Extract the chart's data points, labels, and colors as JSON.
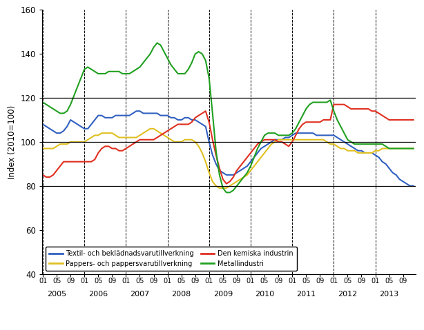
{
  "title": "",
  "ylabel": "Index (2010=100)",
  "ylim": [
    40,
    160
  ],
  "yticks": [
    40,
    60,
    80,
    100,
    120,
    140,
    160
  ],
  "hlines": [
    80,
    100,
    120
  ],
  "background_color": "#ffffff",
  "legend_labels": [
    "Textil- och beklädnadsvarutillverkning",
    "Pappers- och pappersvarutillverkning",
    "Den kemiska industrin",
    "Metallindustri"
  ],
  "colors": {
    "textil": "#3060c0",
    "pappers": "#e0c020",
    "kemiska": "#e03020",
    "metall": "#20a020"
  },
  "start_year": 2005,
  "start_month": 1,
  "textil": [
    108,
    107,
    106,
    105,
    104,
    104,
    105,
    107,
    110,
    109,
    108,
    107,
    106,
    106,
    108,
    110,
    112,
    112,
    111,
    111,
    111,
    112,
    112,
    112,
    112,
    112,
    113,
    114,
    114,
    113,
    113,
    113,
    113,
    113,
    112,
    112,
    112,
    111,
    111,
    110,
    110,
    111,
    111,
    110,
    110,
    109,
    108,
    107,
    100,
    94,
    90,
    87,
    86,
    85,
    85,
    85,
    86,
    87,
    88,
    89,
    91,
    93,
    95,
    97,
    98,
    99,
    100,
    101,
    101,
    101,
    102,
    102,
    103,
    104,
    104,
    104,
    104,
    104,
    104,
    103,
    103,
    103,
    103,
    103,
    103,
    102,
    101,
    100,
    99,
    98,
    97,
    96,
    96,
    95,
    95,
    95,
    94,
    93,
    91,
    90,
    88,
    86,
    85,
    83,
    82,
    81,
    80,
    80
  ],
  "pappers": [
    97,
    97,
    97,
    97,
    98,
    99,
    99,
    99,
    100,
    100,
    100,
    100,
    100,
    101,
    102,
    103,
    103,
    104,
    104,
    104,
    104,
    103,
    102,
    102,
    102,
    102,
    102,
    102,
    103,
    104,
    105,
    106,
    106,
    105,
    104,
    103,
    102,
    101,
    100,
    100,
    100,
    101,
    101,
    101,
    100,
    98,
    95,
    91,
    86,
    82,
    80,
    79,
    79,
    79,
    80,
    81,
    82,
    83,
    84,
    85,
    87,
    89,
    91,
    93,
    95,
    97,
    99,
    100,
    101,
    101,
    101,
    101,
    101,
    101,
    101,
    101,
    101,
    101,
    101,
    101,
    101,
    101,
    100,
    99,
    99,
    98,
    97,
    97,
    96,
    96,
    96,
    95,
    95,
    95,
    95,
    95,
    96,
    96,
    97,
    97,
    97,
    97,
    97,
    97,
    97,
    97,
    97,
    97
  ],
  "kemiska": [
    85,
    84,
    84,
    85,
    87,
    89,
    91,
    91,
    91,
    91,
    91,
    91,
    91,
    91,
    91,
    92,
    95,
    97,
    98,
    98,
    97,
    97,
    96,
    96,
    97,
    98,
    99,
    100,
    101,
    101,
    101,
    101,
    101,
    102,
    103,
    104,
    105,
    106,
    107,
    108,
    108,
    108,
    108,
    109,
    111,
    112,
    113,
    114,
    109,
    101,
    94,
    88,
    83,
    81,
    82,
    84,
    87,
    89,
    91,
    93,
    95,
    97,
    99,
    100,
    101,
    101,
    101,
    101,
    100,
    100,
    99,
    98,
    100,
    103,
    106,
    108,
    109,
    109,
    109,
    109,
    109,
    110,
    110,
    110,
    117,
    117,
    117,
    117,
    116,
    115,
    115,
    115,
    115,
    115,
    115,
    114,
    114,
    113,
    112,
    111,
    110,
    110,
    110,
    110,
    110,
    110,
    110,
    110
  ],
  "metall": [
    118,
    117,
    116,
    115,
    114,
    113,
    113,
    114,
    117,
    121,
    125,
    129,
    133,
    134,
    133,
    132,
    131,
    131,
    131,
    132,
    132,
    132,
    132,
    131,
    131,
    131,
    132,
    133,
    134,
    136,
    138,
    140,
    143,
    145,
    144,
    141,
    138,
    135,
    133,
    131,
    131,
    131,
    133,
    136,
    140,
    141,
    140,
    137,
    129,
    113,
    96,
    85,
    79,
    77,
    77,
    78,
    80,
    82,
    84,
    86,
    89,
    93,
    97,
    100,
    103,
    104,
    104,
    104,
    103,
    103,
    103,
    103,
    104,
    106,
    109,
    112,
    115,
    117,
    118,
    118,
    118,
    118,
    118,
    119,
    114,
    110,
    107,
    104,
    101,
    100,
    99,
    99,
    99,
    99,
    99,
    99,
    99,
    99,
    99,
    98,
    97,
    97,
    97,
    97,
    97,
    97,
    97,
    97
  ]
}
